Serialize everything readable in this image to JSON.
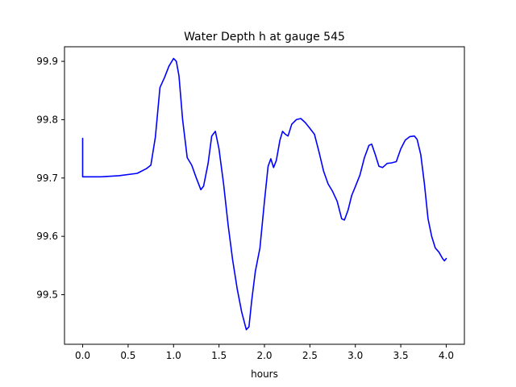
{
  "chart_data": {
    "type": "line",
    "title": "Water Depth h at gauge 545",
    "xlabel": "hours",
    "ylabel": "",
    "xlim": [
      -0.2,
      4.2
    ],
    "ylim": [
      99.415,
      99.925
    ],
    "xticks": [
      0.0,
      0.5,
      1.0,
      1.5,
      2.0,
      2.5,
      3.0,
      3.5,
      4.0
    ],
    "xtick_labels": [
      "0.0",
      "0.5",
      "1.0",
      "1.5",
      "2.0",
      "2.5",
      "3.0",
      "3.5",
      "4.0"
    ],
    "yticks": [
      99.5,
      99.6,
      99.7,
      99.8,
      99.9
    ],
    "ytick_labels": [
      "99.5",
      "99.6",
      "99.7",
      "99.8",
      "99.9"
    ],
    "grid": false,
    "series": [
      {
        "color": "#0000ff",
        "x": [
          0.0,
          0.0,
          0.05,
          0.2,
          0.4,
          0.6,
          0.7,
          0.75,
          0.8,
          0.85,
          0.9,
          0.95,
          1.0,
          1.03,
          1.06,
          1.1,
          1.15,
          1.2,
          1.25,
          1.3,
          1.33,
          1.38,
          1.42,
          1.46,
          1.5,
          1.55,
          1.6,
          1.65,
          1.7,
          1.75,
          1.8,
          1.83,
          1.86,
          1.9,
          1.95,
          2.0,
          2.04,
          2.07,
          2.1,
          2.13,
          2.17,
          2.2,
          2.23,
          2.26,
          2.3,
          2.35,
          2.4,
          2.45,
          2.5,
          2.55,
          2.6,
          2.65,
          2.7,
          2.75,
          2.8,
          2.85,
          2.88,
          2.92,
          2.96,
          3.0,
          3.05,
          3.1,
          3.15,
          3.18,
          3.22,
          3.26,
          3.3,
          3.35,
          3.4,
          3.45,
          3.5,
          3.55,
          3.6,
          3.65,
          3.68,
          3.72,
          3.76,
          3.8,
          3.84,
          3.88,
          3.92,
          3.96,
          3.98,
          4.0
        ],
        "y": [
          99.768,
          99.702,
          99.702,
          99.702,
          99.704,
          99.708,
          99.716,
          99.722,
          99.77,
          99.855,
          99.872,
          99.892,
          99.905,
          99.9,
          99.875,
          99.8,
          99.735,
          99.722,
          99.7,
          99.68,
          99.686,
          99.725,
          99.772,
          99.78,
          99.75,
          99.69,
          99.62,
          99.56,
          99.51,
          99.47,
          99.44,
          99.445,
          99.49,
          99.54,
          99.58,
          99.66,
          99.72,
          99.733,
          99.718,
          99.73,
          99.765,
          99.78,
          99.775,
          99.772,
          99.792,
          99.8,
          99.802,
          99.795,
          99.785,
          99.775,
          99.745,
          99.712,
          99.69,
          99.677,
          99.66,
          99.63,
          99.628,
          99.645,
          99.67,
          99.685,
          99.705,
          99.735,
          99.756,
          99.758,
          99.74,
          99.72,
          99.718,
          99.725,
          99.726,
          99.728,
          99.75,
          99.765,
          99.771,
          99.772,
          99.766,
          99.74,
          99.69,
          99.63,
          99.6,
          99.58,
          99.573,
          99.562,
          99.558,
          99.562
        ]
      }
    ]
  }
}
